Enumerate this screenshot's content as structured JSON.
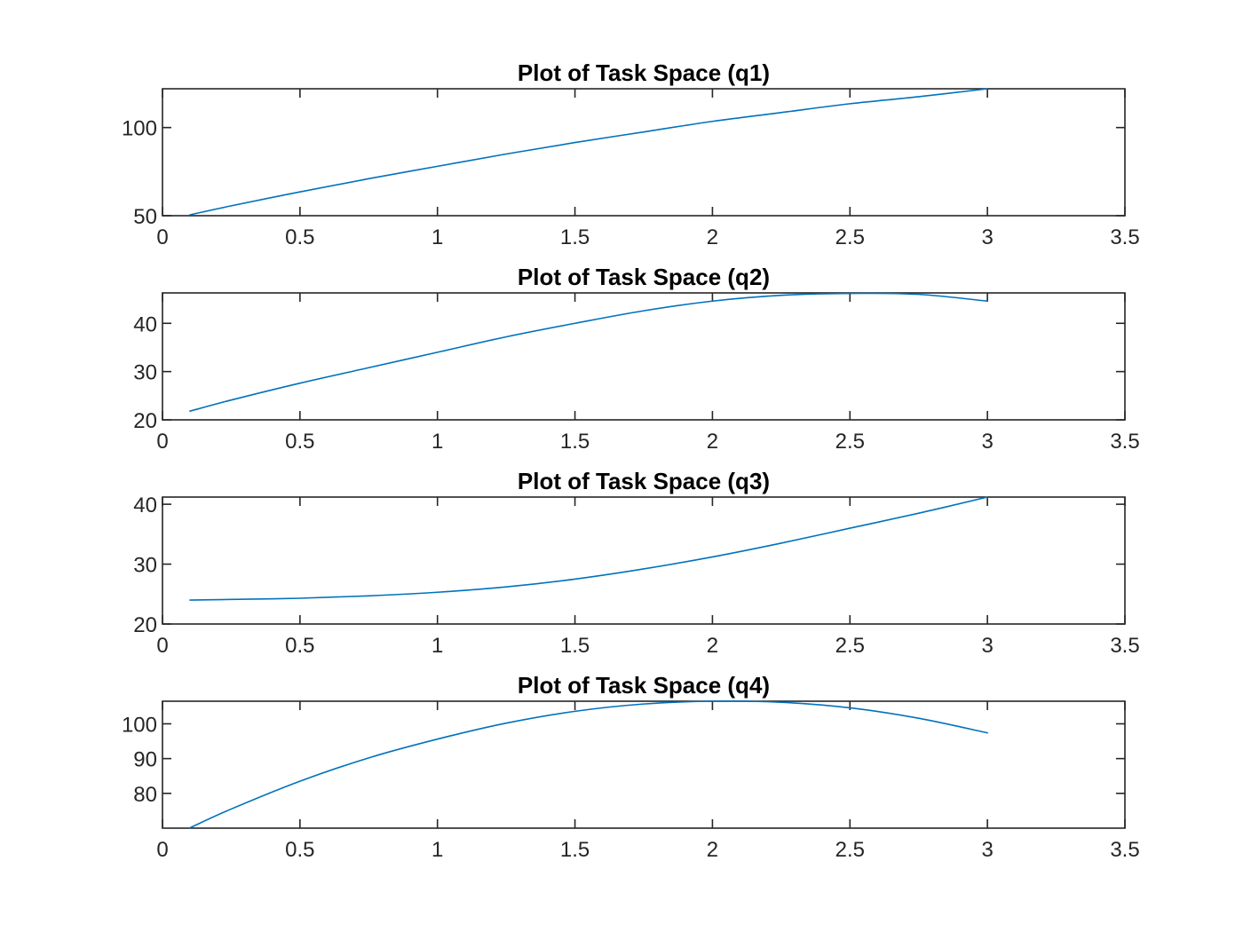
{
  "colors": {
    "line": "#0072BD",
    "axes": "#262626",
    "title": "#000000",
    "background": "#ffffff"
  },
  "chart_data": [
    {
      "type": "line",
      "title": "Plot of Task Space (q1)",
      "xlabel": "",
      "ylabel": "",
      "xlim": [
        0,
        3.5
      ],
      "ylim": [
        50,
        122
      ],
      "xticks": [
        0,
        0.5,
        1,
        1.5,
        2,
        2.5,
        3,
        3.5
      ],
      "xtick_labels": [
        "0",
        "0.5",
        "1",
        "1.5",
        "2",
        "2.5",
        "3",
        "3.5"
      ],
      "yticks": [
        50,
        100
      ],
      "ytick_labels": [
        "50",
        "100"
      ],
      "grid": false,
      "series": [
        {
          "x": [
            0.1,
            0.25,
            0.5,
            0.75,
            1,
            1.25,
            1.5,
            1.75,
            2,
            2.25,
            2.5,
            2.75,
            3
          ],
          "y": [
            50.5,
            55.6,
            63.5,
            71.0,
            78.0,
            85.0,
            91.5,
            97.5,
            103.5,
            108.5,
            113.5,
            117.5,
            122
          ]
        }
      ]
    },
    {
      "type": "line",
      "title": "Plot of Task Space (q2)",
      "xlabel": "",
      "ylabel": "",
      "xlim": [
        0,
        3.5
      ],
      "ylim": [
        20,
        46.3
      ],
      "xticks": [
        0,
        0.5,
        1,
        1.5,
        2,
        2.5,
        3,
        3.5
      ],
      "xtick_labels": [
        "0",
        "0.5",
        "1",
        "1.5",
        "2",
        "2.5",
        "3",
        "3.5"
      ],
      "yticks": [
        20,
        30,
        40
      ],
      "ytick_labels": [
        "20",
        "30",
        "40"
      ],
      "grid": false,
      "series": [
        {
          "x": [
            0.1,
            0.25,
            0.5,
            0.75,
            1,
            1.25,
            1.5,
            1.75,
            2,
            2.25,
            2.5,
            2.75,
            3
          ],
          "y": [
            21.8,
            24.1,
            27.6,
            30.8,
            34.0,
            37.2,
            40.0,
            42.6,
            44.6,
            45.8,
            46.2,
            46.0,
            44.6
          ]
        }
      ]
    },
    {
      "type": "line",
      "title": "Plot of Task Space (q3)",
      "xlabel": "",
      "ylabel": "",
      "xlim": [
        0,
        3.5
      ],
      "ylim": [
        20,
        41.2
      ],
      "xticks": [
        0,
        0.5,
        1,
        1.5,
        2,
        2.5,
        3,
        3.5
      ],
      "xtick_labels": [
        "0",
        "0.5",
        "1",
        "1.5",
        "2",
        "2.5",
        "3",
        "3.5"
      ],
      "yticks": [
        20,
        30,
        40
      ],
      "ytick_labels": [
        "20",
        "30",
        "40"
      ],
      "grid": false,
      "series": [
        {
          "x": [
            0.1,
            0.25,
            0.5,
            0.75,
            1,
            1.25,
            1.5,
            1.75,
            2,
            2.25,
            2.5,
            2.75,
            3
          ],
          "y": [
            24.0,
            24.1,
            24.3,
            24.7,
            25.3,
            26.2,
            27.5,
            29.2,
            31.2,
            33.5,
            36.0,
            38.5,
            41.2
          ]
        }
      ]
    },
    {
      "type": "line",
      "title": "Plot of Task Space (q4)",
      "xlabel": "",
      "ylabel": "",
      "xlim": [
        0,
        3.5
      ],
      "ylim": [
        70,
        106.5
      ],
      "xticks": [
        0,
        0.5,
        1,
        1.5,
        2,
        2.5,
        3,
        3.5
      ],
      "xtick_labels": [
        "0",
        "0.5",
        "1",
        "1.5",
        "2",
        "2.5",
        "3",
        "3.5"
      ],
      "yticks": [
        80,
        90,
        100
      ],
      "ytick_labels": [
        "80",
        "90",
        "100"
      ],
      "grid": false,
      "series": [
        {
          "x": [
            0.1,
            0.25,
            0.5,
            0.75,
            1,
            1.25,
            1.5,
            1.75,
            2,
            2.25,
            2.5,
            2.75,
            3
          ],
          "y": [
            70.1,
            75.5,
            83.5,
            90.2,
            95.6,
            100.2,
            103.6,
            105.7,
            106.5,
            106.2,
            104.6,
            101.6,
            97.4
          ]
        }
      ]
    }
  ]
}
